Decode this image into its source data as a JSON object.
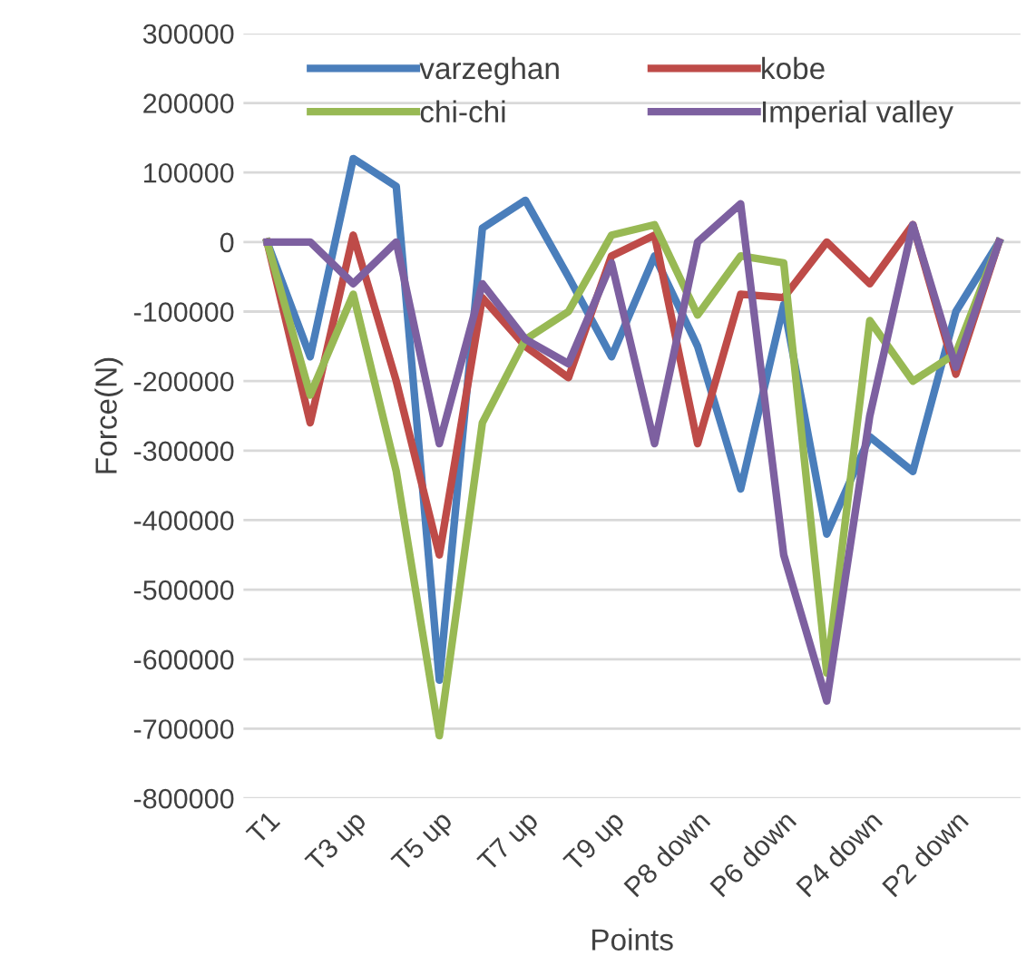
{
  "chart_data": {
    "type": "line",
    "xlabel": "Points",
    "ylabel": "Force(N)",
    "categories": [
      "T1",
      null,
      "T3 up",
      null,
      "T5 up",
      null,
      "T7 up",
      null,
      "T9 up",
      null,
      "P8 down",
      null,
      "P6 down",
      null,
      "P4 down",
      null,
      "P2 down",
      null
    ],
    "series": [
      {
        "name": "varzeghan",
        "color": "#4a7ebb",
        "values": [
          0,
          -165000,
          120000,
          80000,
          -630000,
          20000,
          60000,
          -50000,
          -165000,
          -20000,
          -150000,
          -355000,
          -90000,
          -420000,
          -280000,
          -330000,
          -100000,
          0
        ]
      },
      {
        "name": "kobe",
        "color": "#be4b48",
        "values": [
          0,
          -260000,
          10000,
          -200000,
          -450000,
          -80000,
          -150000,
          -195000,
          -20000,
          10000,
          -290000,
          -75000,
          -80000,
          0,
          -60000,
          25000,
          -190000,
          0
        ]
      },
      {
        "name": "chi-chi",
        "color": "#98b954",
        "values": [
          0,
          -220000,
          -75000,
          -330000,
          -710000,
          -260000,
          -140000,
          -100000,
          10000,
          25000,
          -105000,
          -20000,
          -30000,
          -620000,
          -113000,
          -200000,
          -160000,
          0
        ]
      },
      {
        "name": "Imperial valley",
        "color": "#7d60a0",
        "values": [
          0,
          0,
          -60000,
          0,
          -290000,
          -60000,
          -140000,
          -175000,
          -30000,
          -290000,
          0,
          55000,
          -450000,
          -660000,
          -250000,
          25000,
          -180000,
          0
        ]
      }
    ],
    "ylim": [
      -800000,
      300000
    ],
    "yticks": [
      -800000,
      -700000,
      -600000,
      -500000,
      -400000,
      -300000,
      -200000,
      -100000,
      0,
      100000,
      200000,
      300000
    ],
    "grid": "y",
    "legend": "top",
    "marker": "none",
    "line_style": "solid"
  }
}
